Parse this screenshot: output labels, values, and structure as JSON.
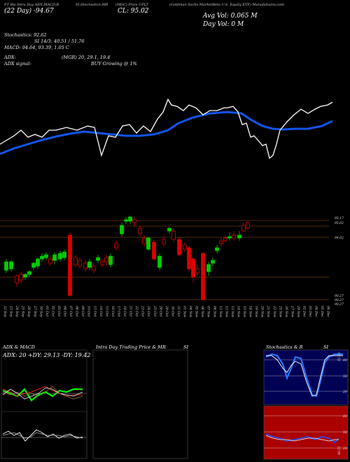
{
  "header": {
    "left_title": "FT Ma Intra Day ADX,MACD,R",
    "mid_title": "SI,Stochastics,MR",
    "price_title": "(MGC) Price UPLT",
    "name_title": "(Goldman Sachs MarketBeta U.S. Equity ETF) MunafaSutra.com",
    "date_line": "(22 Day) -94.67",
    "cl": "CL: 95.02",
    "avg_vol": "Avg Vol: 0.065 M",
    "day_vol": "Day Vol: 0   M",
    "stochastics": "Stochastics: 92.62",
    "si": "SI 14/3: 40.51 / 51.76",
    "macd": "MACD: 94.64, 93.39, 1.05 C",
    "adx": "ADX:",
    "adx_vals": "(MGR) 20, 29.1, 19.4",
    "adx_signal": "ADX  signal:",
    "signal": "BUY Growing @ 1%"
  },
  "price_levels": {
    "top1": "95.17",
    "top2": "95.02",
    "mid": "94.02",
    "low1": "90.27",
    "low2": "90.27",
    "low3": "90.27"
  },
  "dates": [
    "22 Sep",
    "23 Sep",
    "24 Sep",
    "25 Sep",
    "26 Sep",
    "27 Sep",
    "30 Sep",
    "01 Oct",
    "02 Oct",
    "03 Oct",
    "04 Oct",
    "07 Oct",
    "08 Oct",
    "09 Oct",
    "10 Oct",
    "11 Oct",
    "14 Oct",
    "15 Oct",
    "16 Oct",
    "17 Oct",
    "18 Oct",
    "21 Oct",
    "22 Oct",
    "23 Oct",
    "24 Oct",
    "25 Oct",
    "28 Oct",
    "29 Oct",
    "30 Oct",
    "31 Oct",
    "01 Nov",
    "04 Nov",
    "05 Nov",
    "06 Nov",
    "07 Nov",
    "08 Nov",
    "11 Nov",
    "12 Nov",
    "13 Nov",
    "14 Nov",
    "15 Nov",
    "18 Nov",
    "19 Nov",
    "20 Nov",
    "21 Nov",
    "22 Nov",
    "25 Nov",
    "26 Nov",
    "27 Nov",
    "29 Nov",
    "02 Dec",
    "03 Dec",
    "04 Dec",
    "05 Dec",
    "06 Dec"
  ],
  "panels": {
    "adx_title": "ADX  & MACD",
    "adx_values": "ADX: 20  +DY: 29.13  -DY: 19.42",
    "intra_title": "Intra Day Trading Price  & MR",
    "intra_si": "SI",
    "stoch_title": "Stochastics & R",
    "stoch_si": "SI",
    "stoch_value": "92.62",
    "rsi_value": "46.55",
    "stoch_levels": [
      "80",
      "50",
      "20"
    ],
    "rsi_levels": [
      "80",
      "50",
      "20"
    ]
  },
  "colors": {
    "up": "#00cc00",
    "down": "#dd0000",
    "ma": "#1155ee",
    "bg": "#000000",
    "rsi_bg": "#aa0000",
    "stoch_bg": "#000066"
  }
}
